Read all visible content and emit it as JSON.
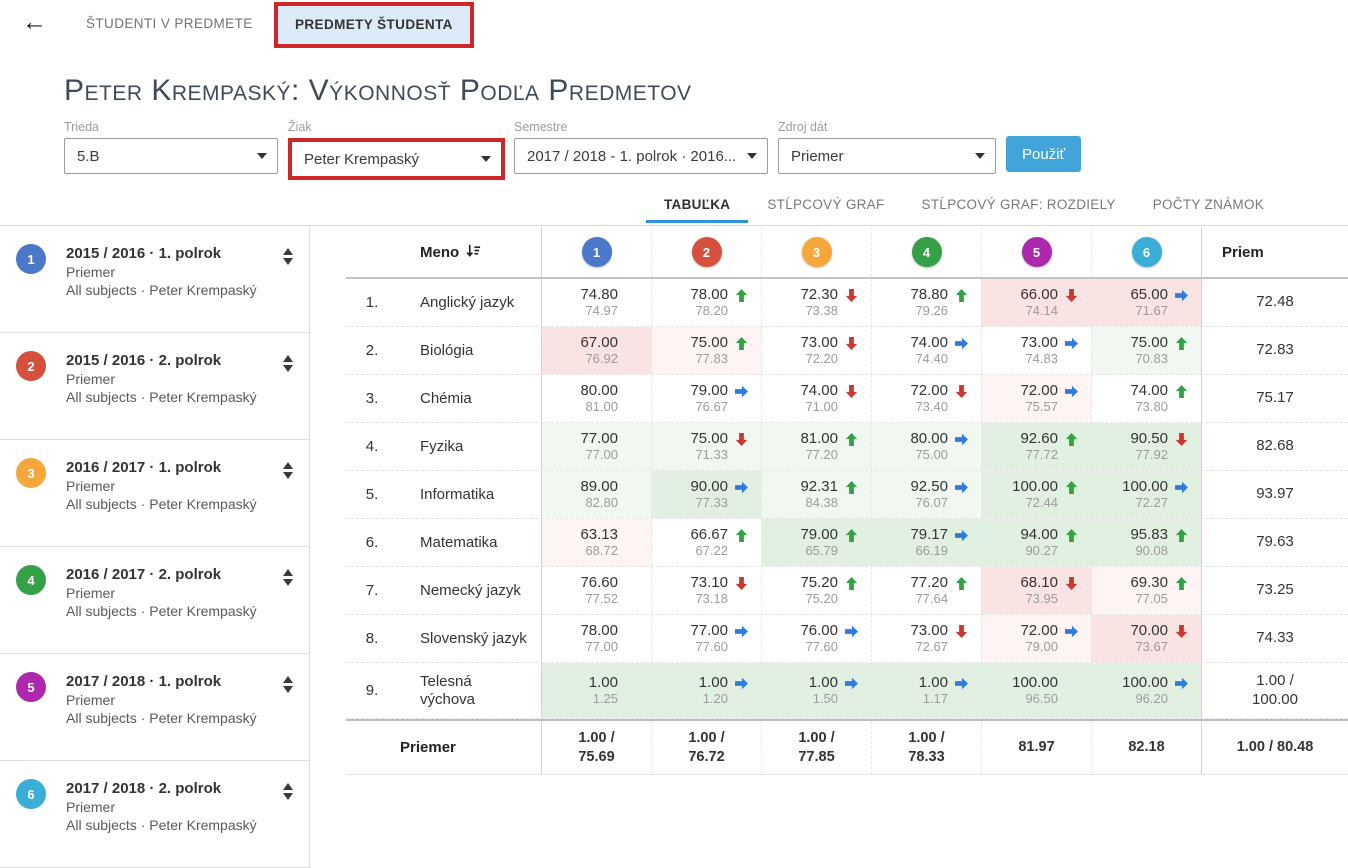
{
  "header": {
    "back_icon": "arrow-left",
    "tabs": [
      {
        "label": "ŠTUDENTI V PREDMETE",
        "active": false
      },
      {
        "label": "PREDMETY ŠTUDENTA",
        "active": true,
        "annotated": true
      }
    ]
  },
  "title": "Peter Krempaský: Výkonnosť Podľa Predmetov",
  "filters": {
    "trieda": {
      "label": "Trieda",
      "value": "5.B"
    },
    "ziak": {
      "label": "Žiak",
      "value": "Peter Krempaský",
      "annotated": true
    },
    "semestre": {
      "label": "Semestre",
      "value": "2017 / 2018 - 1. polrok · 2016..."
    },
    "zdroj": {
      "label": "Zdroj dát",
      "value": "Priemer"
    },
    "apply_label": "Použiť"
  },
  "view_tabs": [
    {
      "label": "TABUĽKA",
      "active": true
    },
    {
      "label": "STĹPCOVÝ GRAF",
      "active": false
    },
    {
      "label": "STĹPCOVÝ GRAF: ROZDIELY",
      "active": false
    },
    {
      "label": "POČTY ZNÁMOK",
      "active": false
    }
  ],
  "colors": {
    "annotation_red": "#ce2727",
    "apply_button_blue": "#42a5da",
    "tab_underline_blue": "#2e96dd",
    "active_tab_bg": "#dcebf7",
    "trend_up_green": "#35a046",
    "trend_down_red": "#c9372f",
    "trend_right_blue": "#2f7cdb",
    "tint_pink": "#f9e4e3",
    "tint_pink_light": "#fdf4f3",
    "tint_green": "#e2f0e2",
    "tint_green_light": "#f1f8f1",
    "period_colors": [
      "#4c78c9",
      "#d6503e",
      "#f5a73b",
      "#35a046",
      "#ad28ad",
      "#3aaed6"
    ]
  },
  "sidebar": {
    "items": [
      {
        "num": "1",
        "color": "#4c78c9",
        "title": "2015 / 2016 · 1. polrok",
        "line2": "Priemer",
        "line3": "All subjects · Peter Krempaský"
      },
      {
        "num": "2",
        "color": "#d6503e",
        "title": "2015 / 2016 · 2. polrok",
        "line2": "Priemer",
        "line3": "All subjects · Peter Krempaský"
      },
      {
        "num": "3",
        "color": "#f5a73b",
        "title": "2016 / 2017 · 1. polrok",
        "line2": "Priemer",
        "line3": "All subjects · Peter Krempaský"
      },
      {
        "num": "4",
        "color": "#35a046",
        "title": "2016 / 2017 · 2. polrok",
        "line2": "Priemer",
        "line3": "All subjects · Peter Krempaský"
      },
      {
        "num": "5",
        "color": "#ad28ad",
        "title": "2017 / 2018 · 1. polrok",
        "line2": "Priemer",
        "line3": "All subjects · Peter Krempaský"
      },
      {
        "num": "6",
        "color": "#3aaed6",
        "title": "2017 / 2018 · 2. polrok",
        "line2": "Priemer",
        "line3": "All subjects · Peter Krempaský"
      }
    ]
  },
  "table": {
    "name_header": "Meno",
    "sort_icon": "sort-asc-icon",
    "priem_header": "Priem",
    "period_nums": [
      "1",
      "2",
      "3",
      "4",
      "5",
      "6"
    ],
    "rows": [
      {
        "index": "1.",
        "name": "Anglický jazyk",
        "cells": [
          {
            "main": "74.80",
            "sub": "74.97",
            "trend": "",
            "bg": ""
          },
          {
            "main": "78.00",
            "sub": "78.20",
            "trend": "up",
            "bg": ""
          },
          {
            "main": "72.30",
            "sub": "73.38",
            "trend": "down",
            "bg": ""
          },
          {
            "main": "78.80",
            "sub": "79.26",
            "trend": "up",
            "bg": ""
          },
          {
            "main": "66.00",
            "sub": "74.14",
            "trend": "down",
            "bg": "p2"
          },
          {
            "main": "65.00",
            "sub": "71.67",
            "trend": "right",
            "bg": "p2"
          }
        ],
        "priem": "72.48"
      },
      {
        "index": "2.",
        "name": "Biológia",
        "cells": [
          {
            "main": "67.00",
            "sub": "76.92",
            "trend": "",
            "bg": "p2"
          },
          {
            "main": "75.00",
            "sub": "77.83",
            "trend": "up",
            "bg": "p1"
          },
          {
            "main": "73.00",
            "sub": "72.20",
            "trend": "down",
            "bg": ""
          },
          {
            "main": "74.00",
            "sub": "74.40",
            "trend": "right",
            "bg": ""
          },
          {
            "main": "73.00",
            "sub": "74.83",
            "trend": "right",
            "bg": ""
          },
          {
            "main": "75.00",
            "sub": "70.83",
            "trend": "up",
            "bg": "g1"
          }
        ],
        "priem": "72.83"
      },
      {
        "index": "3.",
        "name": "Chémia",
        "cells": [
          {
            "main": "80.00",
            "sub": "81.00",
            "trend": "",
            "bg": ""
          },
          {
            "main": "79.00",
            "sub": "76.67",
            "trend": "right",
            "bg": ""
          },
          {
            "main": "74.00",
            "sub": "71.00",
            "trend": "down",
            "bg": ""
          },
          {
            "main": "72.00",
            "sub": "73.40",
            "trend": "down",
            "bg": ""
          },
          {
            "main": "72.00",
            "sub": "75.57",
            "trend": "right",
            "bg": "p1"
          },
          {
            "main": "74.00",
            "sub": "73.80",
            "trend": "up",
            "bg": ""
          }
        ],
        "priem": "75.17"
      },
      {
        "index": "4.",
        "name": "Fyzika",
        "cells": [
          {
            "main": "77.00",
            "sub": "77.00",
            "trend": "",
            "bg": "g1"
          },
          {
            "main": "75.00",
            "sub": "71.33",
            "trend": "down",
            "bg": "g1"
          },
          {
            "main": "81.00",
            "sub": "77.20",
            "trend": "up",
            "bg": "g1"
          },
          {
            "main": "80.00",
            "sub": "75.00",
            "trend": "right",
            "bg": "g1"
          },
          {
            "main": "92.60",
            "sub": "77.72",
            "trend": "up",
            "bg": "g2"
          },
          {
            "main": "90.50",
            "sub": "77.92",
            "trend": "down",
            "bg": "g2"
          }
        ],
        "priem": "82.68"
      },
      {
        "index": "5.",
        "name": "Informatika",
        "cells": [
          {
            "main": "89.00",
            "sub": "82.80",
            "trend": "",
            "bg": "g1"
          },
          {
            "main": "90.00",
            "sub": "77.33",
            "trend": "right",
            "bg": "g2"
          },
          {
            "main": "92.31",
            "sub": "84.38",
            "trend": "up",
            "bg": "g1"
          },
          {
            "main": "92.50",
            "sub": "76.07",
            "trend": "right",
            "bg": "g1"
          },
          {
            "main": "100.00",
            "sub": "72.44",
            "trend": "up",
            "bg": "g2"
          },
          {
            "main": "100.00",
            "sub": "72.27",
            "trend": "right",
            "bg": "g2"
          }
        ],
        "priem": "93.97"
      },
      {
        "index": "6.",
        "name": "Matematika",
        "cells": [
          {
            "main": "63.13",
            "sub": "68.72",
            "trend": "",
            "bg": "p1"
          },
          {
            "main": "66.67",
            "sub": "67.22",
            "trend": "up",
            "bg": ""
          },
          {
            "main": "79.00",
            "sub": "65.79",
            "trend": "up",
            "bg": "g2"
          },
          {
            "main": "79.17",
            "sub": "66.19",
            "trend": "right",
            "bg": "g2"
          },
          {
            "main": "94.00",
            "sub": "90.27",
            "trend": "up",
            "bg": "g2"
          },
          {
            "main": "95.83",
            "sub": "90.08",
            "trend": "up",
            "bg": "g2"
          }
        ],
        "priem": "79.63"
      },
      {
        "index": "7.",
        "name": "Nemecký jazyk",
        "cells": [
          {
            "main": "76.60",
            "sub": "77.52",
            "trend": "",
            "bg": ""
          },
          {
            "main": "73.10",
            "sub": "73.18",
            "trend": "down",
            "bg": ""
          },
          {
            "main": "75.20",
            "sub": "75.20",
            "trend": "up",
            "bg": ""
          },
          {
            "main": "77.20",
            "sub": "77.64",
            "trend": "up",
            "bg": ""
          },
          {
            "main": "68.10",
            "sub": "73.95",
            "trend": "down",
            "bg": "p2"
          },
          {
            "main": "69.30",
            "sub": "77.05",
            "trend": "up",
            "bg": "p1"
          }
        ],
        "priem": "73.25"
      },
      {
        "index": "8.",
        "name": "Slovenský jazyk",
        "cells": [
          {
            "main": "78.00",
            "sub": "77.00",
            "trend": "",
            "bg": ""
          },
          {
            "main": "77.00",
            "sub": "77.60",
            "trend": "right",
            "bg": ""
          },
          {
            "main": "76.00",
            "sub": "77.60",
            "trend": "right",
            "bg": ""
          },
          {
            "main": "73.00",
            "sub": "72.67",
            "trend": "down",
            "bg": ""
          },
          {
            "main": "72.00",
            "sub": "79.00",
            "trend": "right",
            "bg": "p1"
          },
          {
            "main": "70.00",
            "sub": "73.67",
            "trend": "down",
            "bg": "p2"
          }
        ],
        "priem": "74.33"
      },
      {
        "index": "9.",
        "name": "Telesná\nvýchova",
        "cells": [
          {
            "main": "1.00",
            "sub": "1.25",
            "trend": "",
            "bg": "g2"
          },
          {
            "main": "1.00",
            "sub": "1.20",
            "trend": "right",
            "bg": "g2"
          },
          {
            "main": "1.00",
            "sub": "1.50",
            "trend": "right",
            "bg": "g2"
          },
          {
            "main": "1.00",
            "sub": "1.17",
            "trend": "right",
            "bg": "g2"
          },
          {
            "main": "100.00",
            "sub": "96.50",
            "trend": "",
            "bg": "g2"
          },
          {
            "main": "100.00",
            "sub": "96.20",
            "trend": "right",
            "bg": "g2"
          }
        ],
        "priem": "1.00 /\n100.00",
        "tall": true
      }
    ],
    "footer": {
      "label": "Priemer",
      "cells": [
        "1.00 /\n75.69",
        "1.00 /\n76.72",
        "1.00 /\n77.85",
        "1.00 /\n78.33",
        "81.97",
        "82.18"
      ],
      "priem": "1.00 / 80.48"
    }
  }
}
